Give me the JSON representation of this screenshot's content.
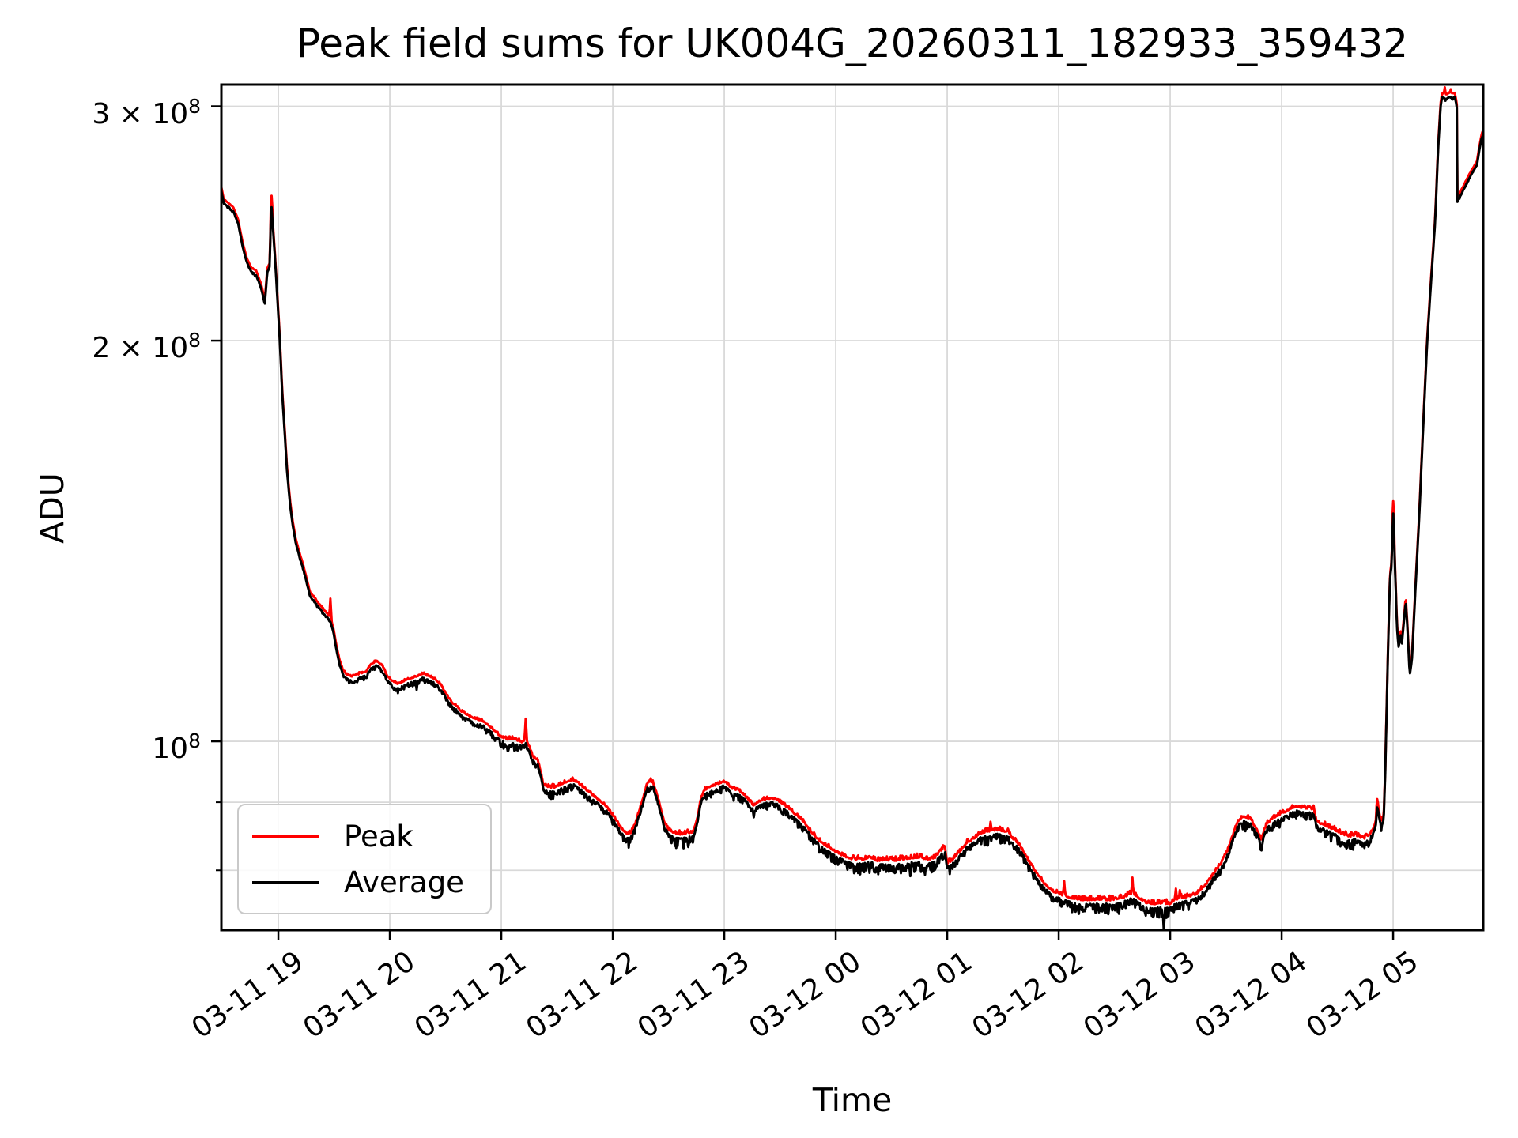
{
  "figure": {
    "title": "Peak field sums for UK004G_20260311_182933_359432",
    "xlabel": "Time",
    "ylabel": "ADU"
  },
  "legend": {
    "position": "lower left",
    "entries": [
      {
        "label": "Peak",
        "color": "#ff0000"
      },
      {
        "label": "Average",
        "color": "#000000"
      }
    ]
  },
  "chart_data": {
    "type": "line",
    "title": "Peak field sums for UK004G_20260311_182933_359432",
    "xlabel": "Time",
    "ylabel": "ADU",
    "yscale": "log",
    "grid": true,
    "grid_color": "#d9d9d9",
    "spine_color": "#000000",
    "legend_position": "lower left",
    "x_unit": "hours after 2026-03-11 18:00",
    "value_unit": "1e6 ADU",
    "xlim": [
      0.489,
      11.808
    ],
    "ylim": [
      72.13,
      311.5
    ],
    "x_ticks": [
      {
        "t": 1,
        "label": "03-11 19"
      },
      {
        "t": 2,
        "label": "03-11 20"
      },
      {
        "t": 3,
        "label": "03-11 21"
      },
      {
        "t": 4,
        "label": "03-11 22"
      },
      {
        "t": 5,
        "label": "03-11 23"
      },
      {
        "t": 6,
        "label": "03-12 00"
      },
      {
        "t": 7,
        "label": "03-12 01"
      },
      {
        "t": 8,
        "label": "03-12 02"
      },
      {
        "t": 9,
        "label": "03-12 03"
      },
      {
        "t": 10,
        "label": "03-12 04"
      },
      {
        "t": 11,
        "label": "03-12 05"
      }
    ],
    "y_ticks": [
      {
        "v": 100,
        "prefix": "",
        "base": "10",
        "exp": "8"
      },
      {
        "v": 200,
        "prefix": "2 × ",
        "base": "10",
        "exp": "8"
      },
      {
        "v": 300,
        "prefix": "3 × ",
        "base": "10",
        "exp": "8"
      }
    ],
    "y_minor_ticks": [
      80,
      90
    ],
    "series": [
      {
        "name": "Peak",
        "color": "#ff0000",
        "role": "upper-envelope"
      },
      {
        "name": "Average",
        "color": "#000000",
        "role": "mean"
      }
    ],
    "base_line": [
      [
        0.489,
        260
      ],
      [
        0.511,
        254.5
      ],
      [
        0.553,
        253
      ],
      [
        0.596,
        251
      ],
      [
        0.638,
        246
      ],
      [
        0.681,
        236
      ],
      [
        0.716,
        230
      ],
      [
        0.759,
        226
      ],
      [
        0.801,
        225
      ],
      [
        0.844,
        220
      ],
      [
        0.879,
        214
      ],
      [
        0.901,
        226
      ],
      [
        0.922,
        228
      ],
      [
        0.936,
        255
      ],
      [
        0.972,
        230
      ],
      [
        1.014,
        200
      ],
      [
        1.035,
        183
      ],
      [
        1.057,
        171
      ],
      [
        1.078,
        160
      ],
      [
        1.106,
        151
      ],
      [
        1.128,
        146
      ],
      [
        1.156,
        141.5
      ],
      [
        1.191,
        138
      ],
      [
        1.22,
        135.5
      ],
      [
        1.255,
        132
      ],
      [
        1.284,
        129
      ],
      [
        1.319,
        128
      ],
      [
        1.362,
        126.5
      ],
      [
        1.397,
        125.5
      ],
      [
        1.433,
        124.5
      ],
      [
        1.468,
        123.5
      ],
      [
        1.496,
        121
      ],
      [
        1.518,
        118
      ],
      [
        1.546,
        115
      ],
      [
        1.574,
        113
      ],
      [
        1.603,
        112
      ],
      [
        1.66,
        111.5
      ],
      [
        1.73,
        112
      ],
      [
        1.787,
        112.5
      ],
      [
        1.837,
        114
      ],
      [
        1.887,
        114.5
      ],
      [
        1.936,
        113.5
      ],
      [
        1.979,
        111.5
      ],
      [
        2.028,
        110.5
      ],
      [
        2.071,
        110
      ],
      [
        2.121,
        110.5
      ],
      [
        2.17,
        111
      ],
      [
        2.241,
        111.5
      ],
      [
        2.298,
        112
      ],
      [
        2.355,
        111.5
      ],
      [
        2.404,
        111
      ],
      [
        2.454,
        110
      ],
      [
        2.496,
        108.5
      ],
      [
        2.525,
        107.5
      ],
      [
        2.56,
        106.5
      ],
      [
        2.596,
        106
      ],
      [
        2.638,
        105
      ],
      [
        2.681,
        104.5
      ],
      [
        2.723,
        104
      ],
      [
        2.78,
        103.5
      ],
      [
        2.83,
        103.3
      ],
      [
        2.879,
        102.5
      ],
      [
        2.922,
        101.8
      ],
      [
        2.95,
        101.3
      ],
      [
        2.993,
        100.5
      ],
      [
        3.043,
        100
      ],
      [
        3.113,
        100
      ],
      [
        3.184,
        99.5
      ],
      [
        3.22,
        100
      ],
      [
        3.255,
        98.5
      ],
      [
        3.284,
        97
      ],
      [
        3.326,
        96.5
      ],
      [
        3.355,
        94.5
      ],
      [
        3.376,
        92.5
      ],
      [
        3.433,
        92
      ],
      [
        3.489,
        92
      ],
      [
        3.539,
        92.5
      ],
      [
        3.596,
        93
      ],
      [
        3.645,
        93.2
      ],
      [
        3.702,
        92.5
      ],
      [
        3.766,
        91.5
      ],
      [
        3.823,
        90.7
      ],
      [
        3.879,
        90
      ],
      [
        3.943,
        89
      ],
      [
        3.979,
        88.2
      ],
      [
        4.014,
        87.4
      ],
      [
        4.057,
        86.2
      ],
      [
        4.106,
        85
      ],
      [
        4.156,
        84.9
      ],
      [
        4.199,
        86.3
      ],
      [
        4.248,
        89
      ],
      [
        4.284,
        91
      ],
      [
        4.305,
        92.5
      ],
      [
        4.333,
        93
      ],
      [
        4.362,
        92.8
      ],
      [
        4.404,
        90.5
      ],
      [
        4.433,
        88.5
      ],
      [
        4.461,
        86.7
      ],
      [
        4.496,
        85.6
      ],
      [
        4.546,
        85
      ],
      [
        4.603,
        84.8
      ],
      [
        4.674,
        85
      ],
      [
        4.723,
        85.2
      ],
      [
        4.759,
        87.3
      ],
      [
        4.787,
        90
      ],
      [
        4.816,
        91.5
      ],
      [
        4.865,
        92
      ],
      [
        4.908,
        92.3
      ],
      [
        4.943,
        92.5
      ],
      [
        4.993,
        93
      ],
      [
        5.028,
        92.5
      ],
      [
        5.078,
        91.7
      ],
      [
        5.121,
        91.6
      ],
      [
        5.17,
        91
      ],
      [
        5.22,
        90
      ],
      [
        5.262,
        89.2
      ],
      [
        5.298,
        89.6
      ],
      [
        5.333,
        90
      ],
      [
        5.383,
        90.2
      ],
      [
        5.433,
        90.3
      ],
      [
        5.475,
        90
      ],
      [
        5.525,
        89.4
      ],
      [
        5.596,
        88.5
      ],
      [
        5.667,
        87.3
      ],
      [
        5.716,
        86.6
      ],
      [
        5.787,
        85
      ],
      [
        5.858,
        83.8
      ],
      [
        5.929,
        83
      ],
      [
        6.0,
        82.3
      ],
      [
        6.071,
        81.7
      ],
      [
        6.142,
        81.3
      ],
      [
        6.234,
        81.2
      ],
      [
        6.305,
        81.5
      ],
      [
        6.376,
        81
      ],
      [
        6.447,
        81.2
      ],
      [
        6.518,
        81
      ],
      [
        6.624,
        81.3
      ],
      [
        6.73,
        81.5
      ],
      [
        6.837,
        81.2
      ],
      [
        6.894,
        81.5
      ],
      [
        6.943,
        82.5
      ],
      [
        6.979,
        83
      ],
      [
        7.0,
        80.7
      ],
      [
        7.035,
        81
      ],
      [
        7.106,
        82.2
      ],
      [
        7.177,
        83.6
      ],
      [
        7.248,
        84.3
      ],
      [
        7.298,
        85
      ],
      [
        7.348,
        85.2
      ],
      [
        7.39,
        85.3
      ],
      [
        7.44,
        85.5
      ],
      [
        7.511,
        85.3
      ],
      [
        7.56,
        85
      ],
      [
        7.582,
        84.3
      ],
      [
        7.631,
        83.6
      ],
      [
        7.674,
        82.6
      ],
      [
        7.723,
        81.2
      ],
      [
        7.773,
        80
      ],
      [
        7.816,
        79
      ],
      [
        7.865,
        78
      ],
      [
        7.915,
        77.2
      ],
      [
        7.957,
        76.8
      ],
      [
        8.007,
        76.5
      ],
      [
        8.057,
        76.2
      ],
      [
        8.149,
        75.8
      ],
      [
        8.255,
        75.7
      ],
      [
        8.362,
        75.8
      ],
      [
        8.468,
        75.7
      ],
      [
        8.574,
        75.9
      ],
      [
        8.631,
        76.5
      ],
      [
        8.695,
        76.3
      ],
      [
        8.738,
        75.7
      ],
      [
        8.787,
        75.3
      ],
      [
        8.858,
        75.2
      ],
      [
        8.929,
        75.3
      ],
      [
        9.0,
        75.2
      ],
      [
        9.05,
        75.8
      ],
      [
        9.106,
        76
      ],
      [
        9.177,
        76.2
      ],
      [
        9.234,
        76.5
      ],
      [
        9.284,
        77.2
      ],
      [
        9.333,
        78
      ],
      [
        9.376,
        79
      ],
      [
        9.426,
        80
      ],
      [
        9.475,
        81.2
      ],
      [
        9.518,
        82.6
      ],
      [
        9.553,
        84.3
      ],
      [
        9.582,
        85.7
      ],
      [
        9.603,
        86.6
      ],
      [
        9.652,
        87.5
      ],
      [
        9.695,
        87.3
      ],
      [
        9.723,
        87.2
      ],
      [
        9.745,
        86.4
      ],
      [
        9.78,
        85.5
      ],
      [
        9.816,
        84
      ],
      [
        9.865,
        86.4
      ],
      [
        9.922,
        87.2
      ],
      [
        9.957,
        87.6
      ],
      [
        9.993,
        87.8
      ],
      [
        10.043,
        88.3
      ],
      [
        10.078,
        88.7
      ],
      [
        10.135,
        89
      ],
      [
        10.191,
        88.8
      ],
      [
        10.241,
        88.7
      ],
      [
        10.284,
        88.6
      ],
      [
        10.312,
        86.8
      ],
      [
        10.348,
        86.4
      ],
      [
        10.383,
        86.2
      ],
      [
        10.433,
        85.8
      ],
      [
        10.475,
        85.5
      ],
      [
        10.525,
        85
      ],
      [
        10.574,
        84.7
      ],
      [
        10.617,
        84.5
      ],
      [
        10.667,
        84.7
      ],
      [
        10.716,
        84.3
      ],
      [
        10.738,
        84.2
      ],
      [
        10.787,
        84.7
      ],
      [
        10.823,
        85.8
      ],
      [
        10.844,
        86.7
      ],
      [
        10.858,
        90
      ],
      [
        10.879,
        87.6
      ],
      [
        10.894,
        86.7
      ],
      [
        10.915,
        87.5
      ],
      [
        10.929,
        95
      ],
      [
        10.936,
        101
      ],
      [
        10.957,
        120
      ],
      [
        10.972,
        133
      ],
      [
        10.986,
        136
      ],
      [
        11.0,
        150
      ],
      [
        11.014,
        138
      ],
      [
        11.035,
        122
      ],
      [
        11.05,
        118
      ],
      [
        11.064,
        121
      ],
      [
        11.078,
        119
      ],
      [
        11.099,
        124
      ],
      [
        11.113,
        128
      ],
      [
        11.128,
        122
      ],
      [
        11.149,
        112.5
      ],
      [
        11.17,
        116
      ],
      [
        11.199,
        130
      ],
      [
        11.234,
        148
      ],
      [
        11.27,
        173
      ],
      [
        11.305,
        200
      ],
      [
        11.34,
        222
      ],
      [
        11.376,
        246
      ],
      [
        11.405,
        281
      ],
      [
        11.426,
        301
      ],
      [
        11.44,
        306
      ],
      [
        11.47,
        305
      ],
      [
        11.5,
        306
      ],
      [
        11.53,
        305.5
      ],
      [
        11.553,
        306
      ],
      [
        11.567,
        302
      ],
      [
        11.571,
        300
      ],
      [
        11.576,
        255
      ],
      [
        11.61,
        258.5
      ],
      [
        11.65,
        262.5
      ],
      [
        11.69,
        266.5
      ],
      [
        11.73,
        270
      ],
      [
        11.752,
        272
      ],
      [
        11.77,
        278
      ],
      [
        11.794,
        285
      ],
      [
        11.808,
        287
      ]
    ],
    "peak_spikes": [
      [
        0.936,
        257
      ],
      [
        1.468,
        128
      ],
      [
        3.22,
        104
      ],
      [
        3.645,
        93.6
      ],
      [
        7.39,
        87
      ],
      [
        8.05,
        78.5
      ],
      [
        8.66,
        79
      ],
      [
        9.05,
        77.5
      ],
      [
        9.09,
        77.3
      ],
      [
        10.284,
        89.5
      ],
      [
        10.858,
        90.5
      ],
      [
        11.0,
        151.5
      ],
      [
        11.46,
        310
      ],
      [
        11.52,
        309
      ]
    ],
    "avg_extra_dips": [
      [
        2.24,
        109.3
      ],
      [
        5.24,
        88.6
      ],
      [
        6.67,
        79.2
      ],
      [
        6.8,
        79.4
      ],
      [
        8.943,
        72.1
      ],
      [
        10.617,
        83.0
      ]
    ],
    "noise": {
      "seed": 7,
      "sample_dt": 0.006,
      "amp_by_value_M": [
        [
          200,
          0.0045
        ],
        [
          120,
          0.006
        ],
        [
          103,
          0.01
        ],
        [
          88,
          0.015
        ],
        [
          0,
          0.02
        ]
      ],
      "peak_up_fraction": 0.45,
      "envelope_gap": 0.003
    }
  }
}
